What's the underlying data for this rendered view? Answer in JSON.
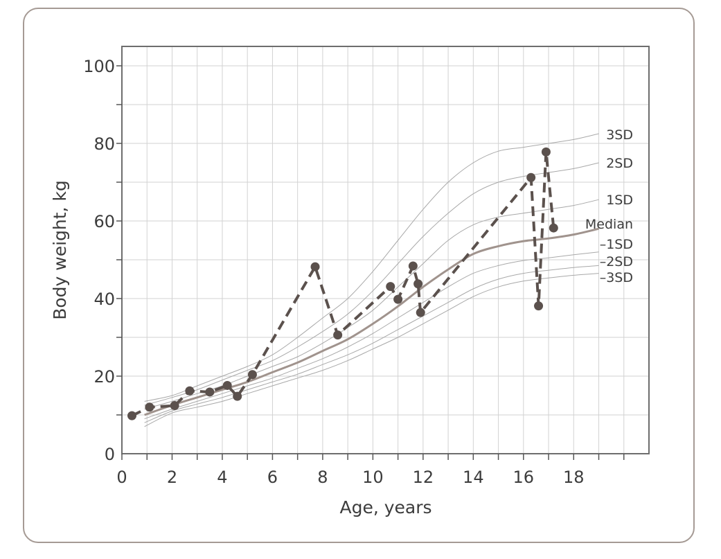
{
  "chart_data": {
    "type": "line",
    "title": "",
    "xlabel": "Age, years",
    "ylabel": "Body weight, kg",
    "xlim": [
      0,
      21
    ],
    "ylim": [
      0,
      105
    ],
    "x_ticks": [
      0,
      2,
      4,
      6,
      8,
      10,
      12,
      14,
      16,
      18
    ],
    "y_ticks": [
      0,
      20,
      40,
      60,
      80,
      100
    ],
    "grid": true,
    "reference_curves": [
      {
        "name": "3SD",
        "points": [
          [
            0.9,
            13.5
          ],
          [
            2,
            15
          ],
          [
            3,
            17.5
          ],
          [
            4,
            20
          ],
          [
            5,
            22.5
          ],
          [
            6,
            25.5
          ],
          [
            7,
            30
          ],
          [
            8,
            35
          ],
          [
            9,
            40
          ],
          [
            10,
            47
          ],
          [
            11,
            55
          ],
          [
            12,
            63
          ],
          [
            13,
            70
          ],
          [
            14,
            75
          ],
          [
            15,
            78
          ],
          [
            16,
            79
          ],
          [
            17,
            80
          ],
          [
            18,
            81
          ],
          [
            19,
            82.5
          ]
        ]
      },
      {
        "name": "2SD",
        "points": [
          [
            0.9,
            12.5
          ],
          [
            2,
            14.5
          ],
          [
            3,
            16.5
          ],
          [
            4,
            19
          ],
          [
            5,
            21.5
          ],
          [
            6,
            24
          ],
          [
            7,
            27.5
          ],
          [
            8,
            31.5
          ],
          [
            9,
            36
          ],
          [
            10,
            42
          ],
          [
            11,
            49
          ],
          [
            12,
            56
          ],
          [
            13,
            62
          ],
          [
            14,
            67
          ],
          [
            15,
            70
          ],
          [
            16,
            71.5
          ],
          [
            17,
            72.5
          ],
          [
            18,
            73.5
          ],
          [
            19,
            75
          ]
        ]
      },
      {
        "name": "1SD",
        "points": [
          [
            0.9,
            11.5
          ],
          [
            2,
            13.5
          ],
          [
            3,
            15.5
          ],
          [
            4,
            17.5
          ],
          [
            5,
            20
          ],
          [
            6,
            22.5
          ],
          [
            7,
            25
          ],
          [
            8,
            28.5
          ],
          [
            9,
            32.5
          ],
          [
            10,
            37
          ],
          [
            11,
            43
          ],
          [
            12,
            49
          ],
          [
            13,
            55
          ],
          [
            14,
            59
          ],
          [
            15,
            61
          ],
          [
            16,
            62
          ],
          [
            17,
            63
          ],
          [
            18,
            64
          ],
          [
            19,
            65.5
          ]
        ]
      },
      {
        "name": "Median",
        "points": [
          [
            0.9,
            10
          ],
          [
            2,
            12.5
          ],
          [
            3,
            14.5
          ],
          [
            4,
            16.5
          ],
          [
            5,
            18.5
          ],
          [
            6,
            21
          ],
          [
            7,
            23.5
          ],
          [
            8,
            26.5
          ],
          [
            9,
            29.5
          ],
          [
            10,
            33.5
          ],
          [
            11,
            38
          ],
          [
            12,
            43
          ],
          [
            13,
            47.5
          ],
          [
            14,
            51.5
          ],
          [
            15,
            53.5
          ],
          [
            16,
            54.8
          ],
          [
            17,
            55.5
          ],
          [
            18,
            56.5
          ],
          [
            19,
            58
          ]
        ]
      },
      {
        "name": "–1SD",
        "points": [
          [
            0.9,
            9
          ],
          [
            2,
            11.5
          ],
          [
            3,
            13.5
          ],
          [
            4,
            15.5
          ],
          [
            5,
            17.5
          ],
          [
            6,
            19.5
          ],
          [
            7,
            22
          ],
          [
            8,
            24.5
          ],
          [
            9,
            27.5
          ],
          [
            10,
            31
          ],
          [
            11,
            35
          ],
          [
            12,
            39
          ],
          [
            13,
            43
          ],
          [
            14,
            46.5
          ],
          [
            15,
            48.5
          ],
          [
            16,
            49.8
          ],
          [
            17,
            50.5
          ],
          [
            18,
            51.3
          ],
          [
            19,
            52
          ]
        ]
      },
      {
        "name": "–2SD",
        "points": [
          [
            0.9,
            8
          ],
          [
            2,
            11
          ],
          [
            3,
            12.8
          ],
          [
            4,
            14.5
          ],
          [
            5,
            16.5
          ],
          [
            6,
            18.5
          ],
          [
            7,
            20.5
          ],
          [
            8,
            23
          ],
          [
            9,
            25.5
          ],
          [
            10,
            28.5
          ],
          [
            11,
            32
          ],
          [
            12,
            35.5
          ],
          [
            13,
            39
          ],
          [
            14,
            42.5
          ],
          [
            15,
            45
          ],
          [
            16,
            46.5
          ],
          [
            17,
            47.3
          ],
          [
            18,
            48
          ],
          [
            19,
            48.5
          ]
        ]
      },
      {
        "name": "–3SD",
        "points": [
          [
            0.9,
            7
          ],
          [
            2,
            10.5
          ],
          [
            3,
            12
          ],
          [
            4,
            13.5
          ],
          [
            5,
            15.5
          ],
          [
            6,
            17.5
          ],
          [
            7,
            19.5
          ],
          [
            8,
            21.5
          ],
          [
            9,
            24
          ],
          [
            10,
            27
          ],
          [
            11,
            30
          ],
          [
            12,
            33.5
          ],
          [
            13,
            37
          ],
          [
            14,
            40.5
          ],
          [
            15,
            43
          ],
          [
            16,
            44.5
          ],
          [
            17,
            45.3
          ],
          [
            18,
            46
          ],
          [
            19,
            46.5
          ]
        ]
      }
    ],
    "series": [
      {
        "points": [
          [
            0.4,
            9.8
          ],
          [
            1.1,
            12
          ],
          [
            2.1,
            12.4
          ],
          [
            2.7,
            16.2
          ],
          [
            3.5,
            15.9
          ],
          [
            4.2,
            17.6
          ],
          [
            4.6,
            14.8
          ],
          [
            5.2,
            20.4
          ],
          [
            7.7,
            48.2
          ],
          [
            8.6,
            30.6
          ],
          [
            10.7,
            43.1
          ],
          [
            11,
            39.8
          ],
          [
            11.6,
            48.4
          ],
          [
            11.8,
            43.8
          ],
          [
            11.9,
            36.4
          ],
          [
            16.3,
            71.2
          ],
          [
            16.6,
            38.1
          ],
          [
            16.9,
            77.8
          ],
          [
            17.2,
            58.2
          ]
        ]
      }
    ]
  }
}
